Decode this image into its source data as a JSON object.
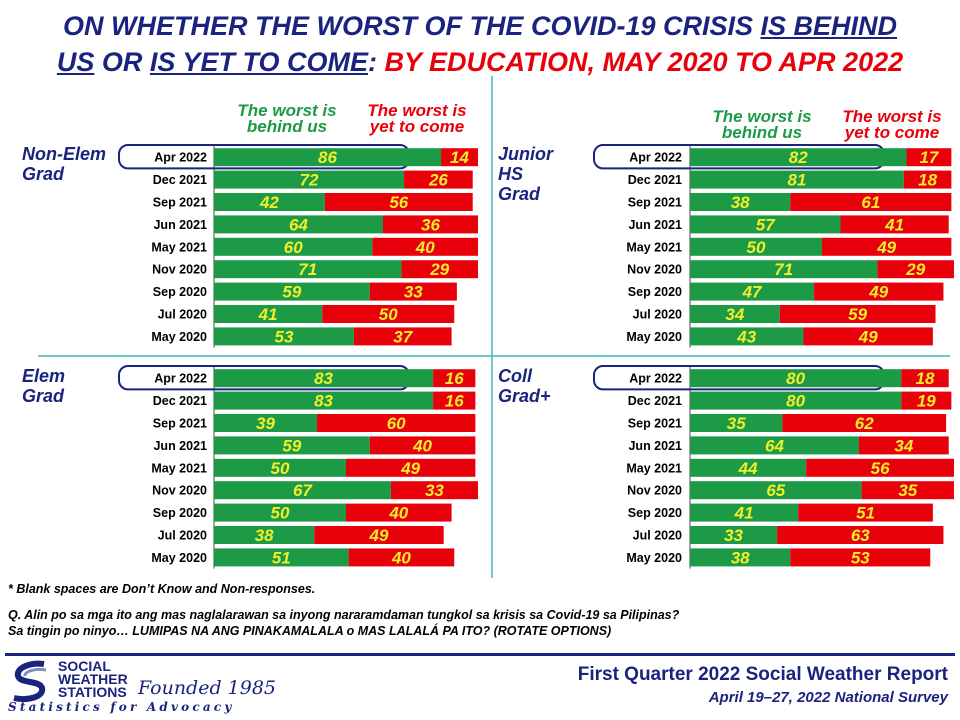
{
  "title": {
    "p1": "ON WHETHER THE WORST OF THE COVID-19 CRISIS ",
    "p2": "IS BEHIND",
    "p3": "US",
    "p4": " OR ",
    "p5": "IS YET TO COME",
    "p6": ": ",
    "p7": "BY EDUCATION, MAY 2020 TO APR 2022"
  },
  "legend": {
    "behind": [
      "The worst is",
      "behind us"
    ],
    "yet": [
      "The worst is",
      "yet to come"
    ]
  },
  "colors": {
    "behind": "#1c9a45",
    "yet": "#e8000b",
    "value_text": "#f2ee2a",
    "navy": "#1a237e",
    "divider": "#3fbcb0"
  },
  "chart_data": [
    {
      "type": "bar",
      "panel": "Non-Elem Grad",
      "group_label": [
        "Non-Elem",
        "Grad"
      ],
      "categories": [
        "Apr 2022",
        "Dec 2021",
        "Sep 2021",
        "Jun 2021",
        "May 2021",
        "Nov 2020",
        "Sep 2020",
        "Jul 2020",
        "May 2020"
      ],
      "series": [
        {
          "name": "The worst is behind us",
          "values": [
            86,
            72,
            42,
            64,
            60,
            71,
            59,
            41,
            53
          ]
        },
        {
          "name": "The worst is yet to come",
          "values": [
            14,
            26,
            56,
            36,
            40,
            29,
            33,
            50,
            37
          ]
        }
      ],
      "stacked": true,
      "orientation": "horizontal",
      "xlim": [
        0,
        100
      ]
    },
    {
      "type": "bar",
      "panel": "Junior HS Grad",
      "group_label": [
        "Junior",
        "HS",
        "Grad"
      ],
      "categories": [
        "Apr 2022",
        "Dec 2021",
        "Sep 2021",
        "Jun 2021",
        "May 2021",
        "Nov 2020",
        "Sep 2020",
        "Jul 2020",
        "May 2020"
      ],
      "series": [
        {
          "name": "The worst is behind us",
          "values": [
            82,
            81,
            38,
            57,
            50,
            71,
            47,
            34,
            43
          ]
        },
        {
          "name": "The worst is yet to come",
          "values": [
            17,
            18,
            61,
            41,
            49,
            29,
            49,
            59,
            49
          ]
        }
      ],
      "stacked": true,
      "orientation": "horizontal",
      "xlim": [
        0,
        100
      ]
    },
    {
      "type": "bar",
      "panel": "Elem Grad",
      "group_label": [
        "Elem",
        "Grad"
      ],
      "categories": [
        "Apr 2022",
        "Dec 2021",
        "Sep 2021",
        "Jun 2021",
        "May 2021",
        "Nov 2020",
        "Sep 2020",
        "Jul 2020",
        "May 2020"
      ],
      "series": [
        {
          "name": "The worst is behind us",
          "values": [
            83,
            83,
            39,
            59,
            50,
            67,
            50,
            38,
            51
          ]
        },
        {
          "name": "The worst is yet to come",
          "values": [
            16,
            16,
            60,
            40,
            49,
            33,
            40,
            49,
            40
          ]
        }
      ],
      "stacked": true,
      "orientation": "horizontal",
      "xlim": [
        0,
        100
      ]
    },
    {
      "type": "bar",
      "panel": "Coll Grad+",
      "group_label": [
        "Coll",
        "Grad+"
      ],
      "categories": [
        "Apr 2022",
        "Dec 2021",
        "Sep 2021",
        "Jun 2021",
        "May 2021",
        "Nov 2020",
        "Sep 2020",
        "Jul 2020",
        "May 2020"
      ],
      "series": [
        {
          "name": "The worst is behind us",
          "values": [
            80,
            80,
            35,
            64,
            44,
            65,
            41,
            33,
            38
          ]
        },
        {
          "name": "The worst is yet to come",
          "values": [
            18,
            19,
            62,
            34,
            56,
            35,
            51,
            63,
            53
          ]
        }
      ],
      "stacked": true,
      "orientation": "horizontal",
      "xlim": [
        0,
        100
      ]
    }
  ],
  "footnote": "* Blank spaces are Don’t Know and Non-responses.",
  "question": [
    "Q. Alin po sa mga ito ang mas naglalarawan sa inyong nararamdaman tungkol sa krisis sa Covid-19 sa Pilipinas?",
    "Sa tingin po ninyo… LUMIPAS NA ANG PINAKAMALALA o MAS LALALÁ PA ITO? (ROTATE OPTIONS)"
  ],
  "logo": {
    "lines": [
      "SOCIAL",
      "WEATHER",
      "STATIONS"
    ],
    "founded": "Founded 1985",
    "tagline": "Statistics for Advocacy"
  },
  "report_title": "First Quarter 2022 Social Weather Report",
  "survey_dates": "April 19–27, 2022 National Survey"
}
